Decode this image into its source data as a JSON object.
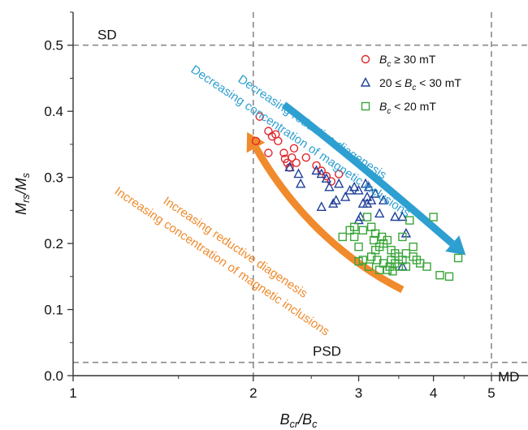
{
  "chart_data": {
    "type": "scatter",
    "xlabel": "B_cr/B_c",
    "ylabel": "M_rs/M_s",
    "xscale": "log",
    "xlim": [
      1,
      5
    ],
    "ylim": [
      0,
      0.55
    ],
    "xticks": [
      1,
      2,
      3,
      4,
      5
    ],
    "yticks": [
      0.0,
      0.1,
      0.2,
      0.3,
      0.4,
      0.5
    ],
    "grid": false,
    "legend_position": "top-right",
    "region_lines": {
      "horizontal": [
        0.5,
        0.02
      ],
      "vertical": [
        2,
        5
      ]
    },
    "region_labels": [
      "SD",
      "PSD",
      "MD"
    ],
    "series": [
      {
        "name": "B_c ≥ 30 mT",
        "marker": "circle",
        "color": "#e0262b",
        "points": [
          [
            2.05,
            0.392
          ],
          [
            2.02,
            0.355
          ],
          [
            2.12,
            0.37
          ],
          [
            2.15,
            0.362
          ],
          [
            2.18,
            0.365
          ],
          [
            2.2,
            0.355
          ],
          [
            2.25,
            0.337
          ],
          [
            2.26,
            0.328
          ],
          [
            2.28,
            0.322
          ],
          [
            2.3,
            0.315
          ],
          [
            2.32,
            0.33
          ],
          [
            2.34,
            0.344
          ],
          [
            2.36,
            0.322
          ],
          [
            2.45,
            0.33
          ],
          [
            2.55,
            0.318
          ],
          [
            2.6,
            0.31
          ],
          [
            2.65,
            0.302
          ],
          [
            2.7,
            0.294
          ],
          [
            2.78,
            0.305
          ],
          [
            2.12,
            0.337
          ]
        ]
      },
      {
        "name": "20 ≤ B_c < 30 mT",
        "marker": "triangle",
        "color": "#1f3f99",
        "points": [
          [
            2.3,
            0.315
          ],
          [
            2.38,
            0.305
          ],
          [
            2.4,
            0.29
          ],
          [
            2.55,
            0.31
          ],
          [
            2.6,
            0.305
          ],
          [
            2.65,
            0.298
          ],
          [
            2.68,
            0.285
          ],
          [
            2.72,
            0.26
          ],
          [
            2.78,
            0.29
          ],
          [
            2.85,
            0.27
          ],
          [
            2.9,
            0.28
          ],
          [
            2.95,
            0.285
          ],
          [
            3.0,
            0.28
          ],
          [
            3.02,
            0.24
          ],
          [
            3.05,
            0.26
          ],
          [
            3.08,
            0.29
          ],
          [
            3.1,
            0.27
          ],
          [
            3.12,
            0.285
          ],
          [
            3.15,
            0.265
          ],
          [
            3.2,
            0.275
          ],
          [
            3.25,
            0.245
          ],
          [
            3.3,
            0.265
          ],
          [
            3.45,
            0.24
          ],
          [
            3.55,
            0.24
          ],
          [
            3.6,
            0.215
          ],
          [
            3.55,
            0.165
          ],
          [
            2.6,
            0.255
          ],
          [
            2.75,
            0.265
          ],
          [
            3.0,
            0.235
          ],
          [
            3.1,
            0.26
          ]
        ]
      },
      {
        "name": "B_c < 20 mT",
        "marker": "square",
        "color": "#3aa53a",
        "points": [
          [
            2.82,
            0.21
          ],
          [
            2.9,
            0.22
          ],
          [
            2.95,
            0.225
          ],
          [
            3.0,
            0.195
          ],
          [
            3.05,
            0.22
          ],
          [
            3.1,
            0.24
          ],
          [
            3.15,
            0.225
          ],
          [
            3.18,
            0.205
          ],
          [
            3.2,
            0.215
          ],
          [
            3.25,
            0.195
          ],
          [
            3.28,
            0.21
          ],
          [
            3.3,
            0.2
          ],
          [
            3.35,
            0.205
          ],
          [
            3.4,
            0.19
          ],
          [
            3.45,
            0.185
          ],
          [
            3.5,
            0.18
          ],
          [
            3.55,
            0.21
          ],
          [
            3.6,
            0.185
          ],
          [
            3.65,
            0.235
          ],
          [
            3.7,
            0.18
          ],
          [
            3.75,
            0.175
          ],
          [
            3.8,
            0.17
          ],
          [
            3.05,
            0.175
          ],
          [
            3.15,
            0.18
          ],
          [
            3.22,
            0.175
          ],
          [
            3.3,
            0.17
          ],
          [
            3.38,
            0.165
          ],
          [
            3.45,
            0.17
          ],
          [
            3.5,
            0.165
          ],
          [
            3.6,
            0.165
          ],
          [
            3.9,
            0.165
          ],
          [
            4.0,
            0.24
          ],
          [
            4.1,
            0.152
          ],
          [
            4.25,
            0.15
          ],
          [
            4.4,
            0.178
          ],
          [
            3.0,
            0.173
          ],
          [
            3.12,
            0.165
          ],
          [
            3.25,
            0.16
          ],
          [
            3.35,
            0.16
          ],
          [
            3.42,
            0.158
          ],
          [
            3.55,
            0.175
          ],
          [
            3.7,
            0.195
          ],
          [
            2.95,
            0.21
          ],
          [
            3.2,
            0.19
          ],
          [
            3.4,
            0.175
          ]
        ]
      }
    ],
    "arrows": [
      {
        "color": "#2e9fd1",
        "direction": "down-right",
        "labels": [
          "Decreasing reductive diagenesis",
          "Decreasing concentration of magnetic inclusions"
        ]
      },
      {
        "color": "#f08a2c",
        "direction": "up-left",
        "labels": [
          "Increasing reductive diagenesis",
          "Increasing concentration of magnetic inclusions"
        ]
      }
    ]
  }
}
